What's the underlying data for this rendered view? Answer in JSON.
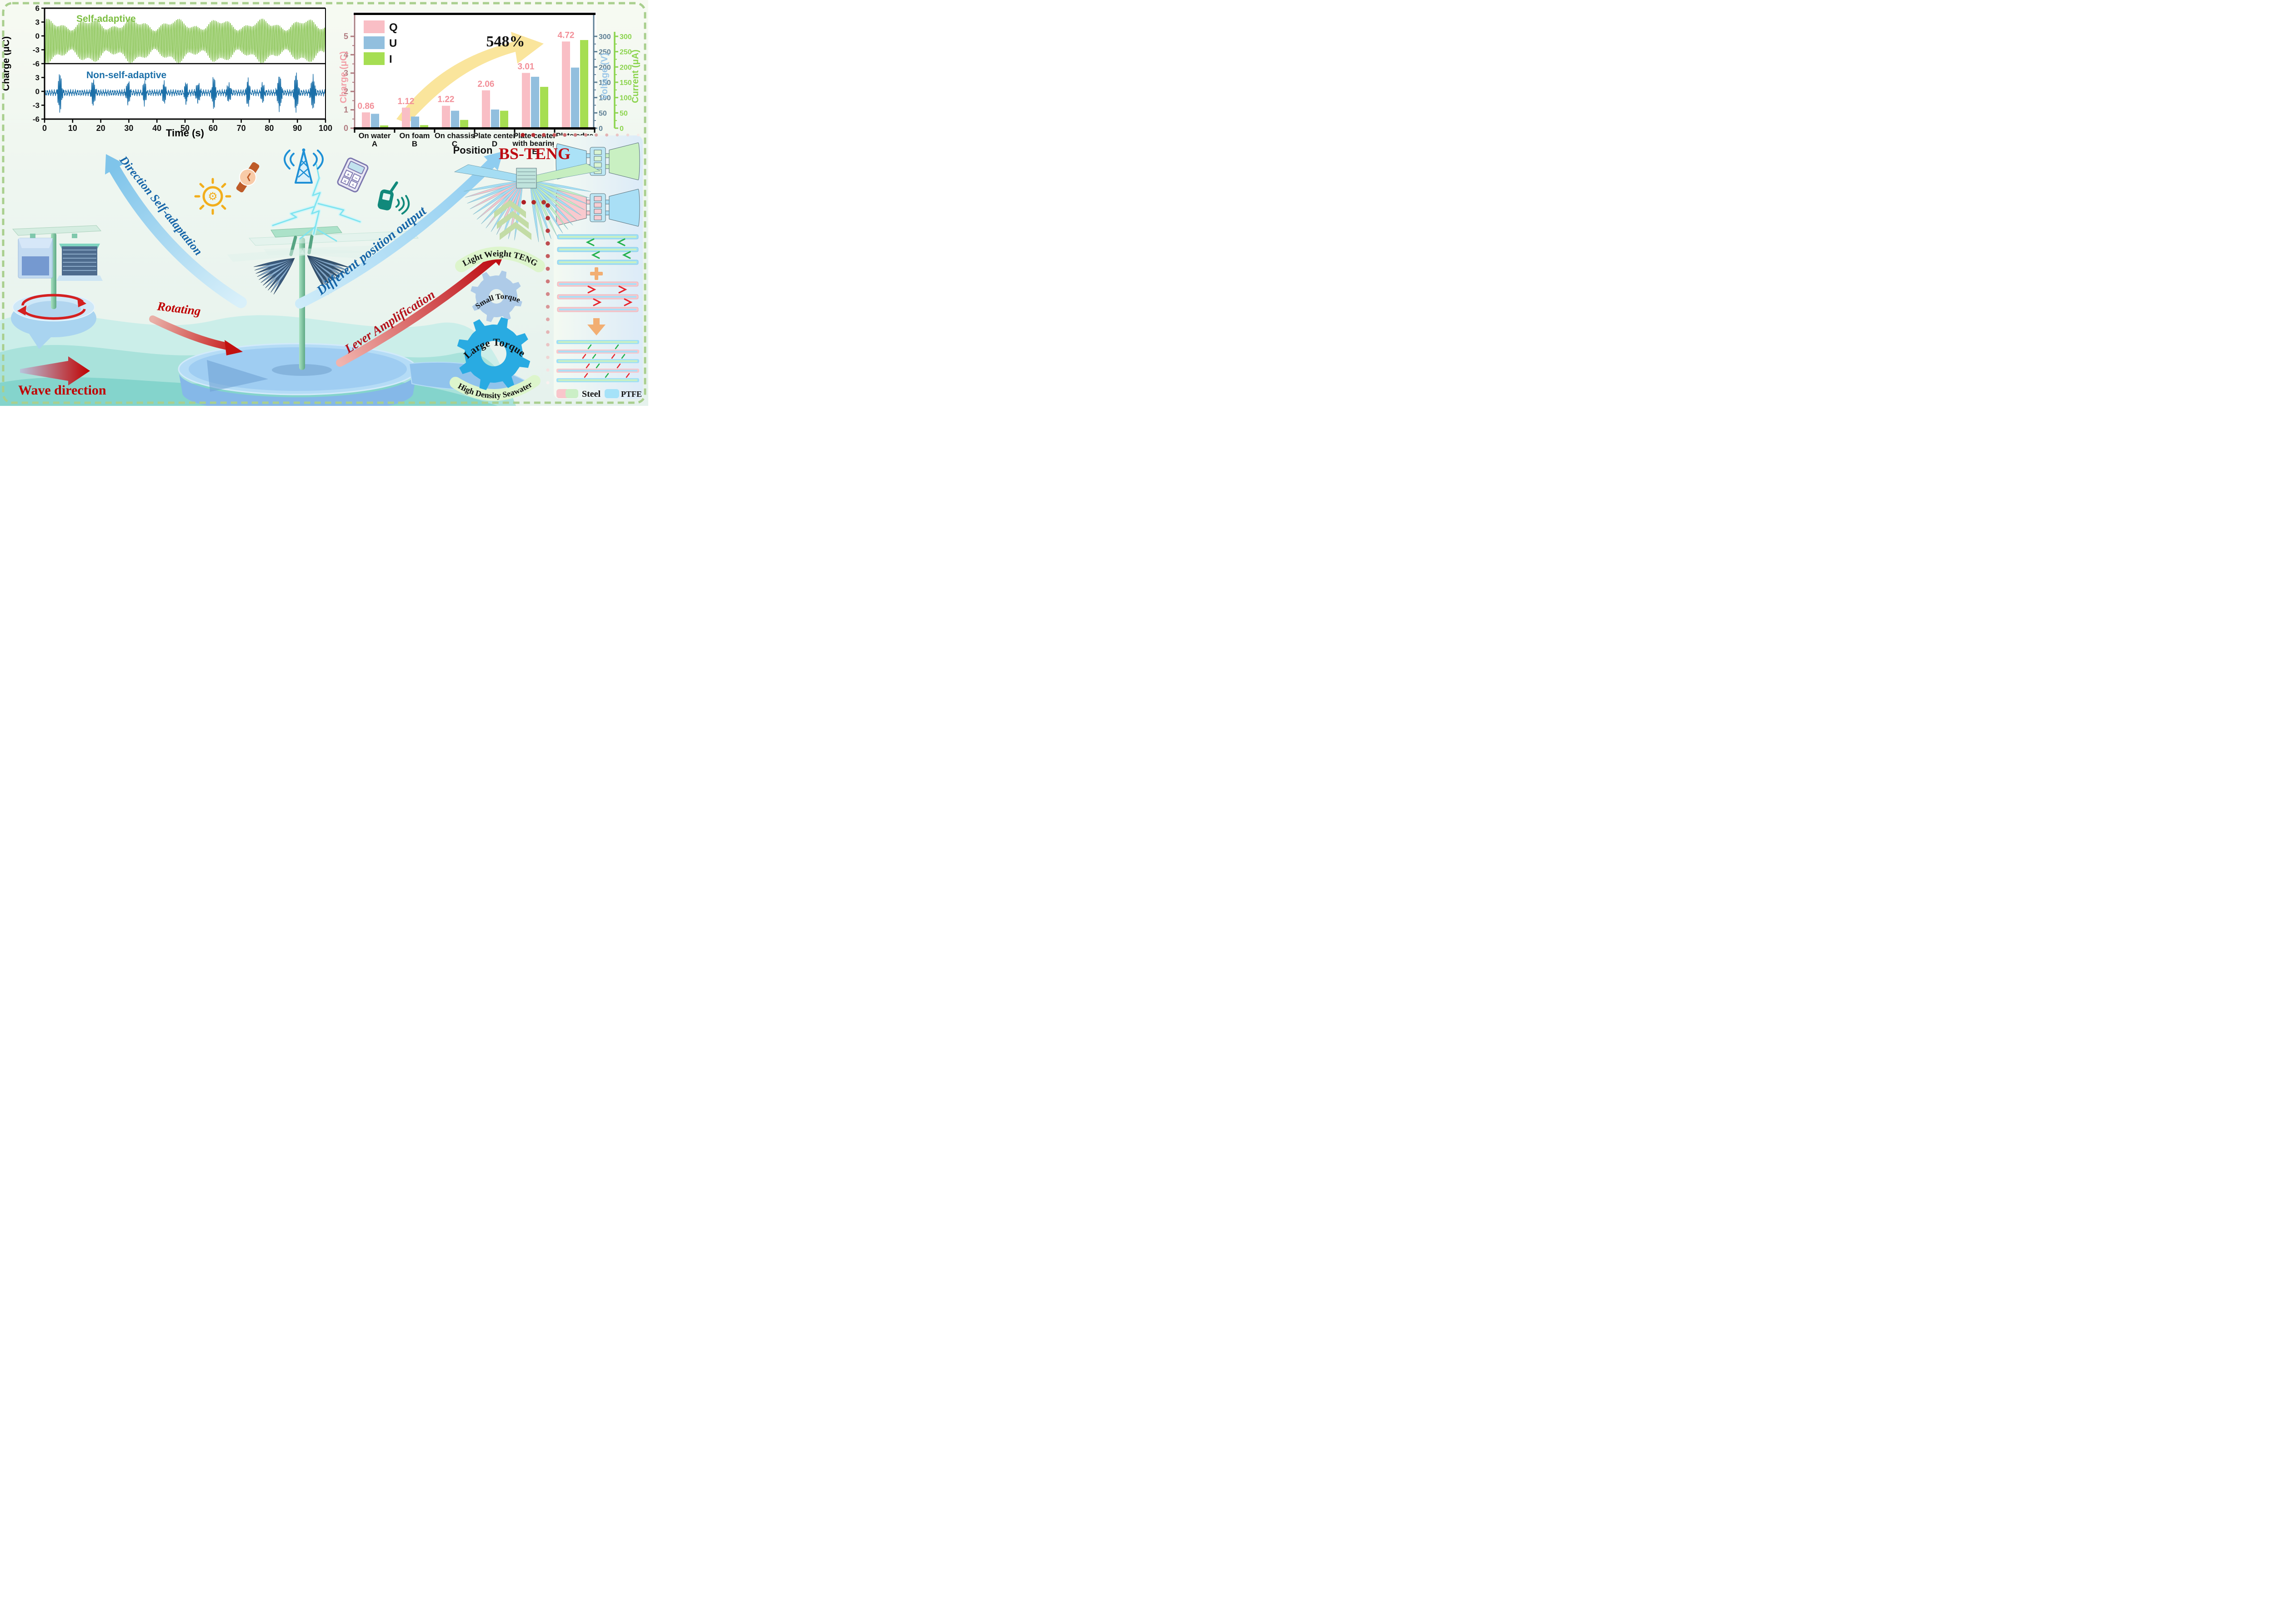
{
  "charge_time_chart": {
    "ylabel": "Charge (μC)",
    "xlabel": "Time (s)",
    "x_ticks": [
      0,
      10,
      20,
      30,
      40,
      50,
      60,
      70,
      80,
      90,
      100
    ],
    "y_ticks_top": [
      6,
      3,
      0,
      -3,
      -6
    ],
    "y_ticks_bottom": [
      3,
      0,
      -3,
      -6
    ],
    "series": [
      {
        "label": "Self-adaptive",
        "color": "#7cbe41"
      },
      {
        "label": "Non-self-adaptive",
        "color": "#1b6fa8"
      }
    ]
  },
  "position_chart": {
    "legend": [
      {
        "label": "Q",
        "color": "#f9bec5"
      },
      {
        "label": "U",
        "color": "#92bfde"
      },
      {
        "label": "I",
        "color": "#a6de52"
      }
    ],
    "annotation": "548%",
    "annotation_arrow_color": "#fae59c",
    "xlabel": "Position",
    "axis_left": {
      "label": "Charge (μC)",
      "label_color": "#f2a0a8",
      "tick_color": "#b07b80",
      "ticks": [
        0,
        1,
        2,
        3,
        4,
        5
      ]
    },
    "axis_voltage": {
      "label": "Voltage (V)",
      "label_color": "#9cc7e8",
      "tick_color": "#5e7f95",
      "ticks": [
        0,
        50,
        100,
        150,
        200,
        250,
        300
      ]
    },
    "axis_current": {
      "label": "Current (μA)",
      "label_color": "#8cd44e",
      "tick_color": "#8cd44e",
      "ticks": [
        0,
        50,
        100,
        150,
        200,
        250,
        300
      ]
    },
    "categories": [
      {
        "name": "On water",
        "letter": "A"
      },
      {
        "name": "On foam",
        "letter": "B"
      },
      {
        "name": "On chassis",
        "letter": "C"
      },
      {
        "name": "Plate center",
        "letter": "D"
      },
      {
        "name": "Plate center",
        "name2": "with bearing",
        "letter": "E"
      },
      {
        "name": "Plate edge",
        "name2": "with bearing",
        "letter": "F"
      }
    ],
    "q_values": [
      0.86,
      1.12,
      1.22,
      2.06,
      3.01,
      4.72
    ],
    "u_values": [
      47,
      38,
      57,
      61,
      168,
      198
    ],
    "i_values": [
      9,
      10,
      27,
      57,
      135,
      288
    ],
    "value_label_color": "#f28f98"
  },
  "chart_data": [
    {
      "type": "line",
      "title": "",
      "xlabel": "Time (s)",
      "ylabel": "Charge (μC)",
      "xlim": [
        0,
        100
      ],
      "ylim": [
        -6,
        6
      ],
      "grid": false,
      "series": [
        {
          "name": "Self-adaptive",
          "color": "#7cbe41",
          "description": "continuous ~1.8 Hz bipolar oscillation for the whole 0-100 s window",
          "peak_range_uC": [
            2.3,
            4.6
          ],
          "trough_range_uC": [
            -6.0,
            -4.3
          ]
        },
        {
          "name": "Non-self-adaptive",
          "color": "#1b6fa8",
          "description": "low ±0.8 μC baseline with intermittent bursts",
          "burst_peak_range_uC": [
            2.0,
            4.5
          ]
        }
      ]
    },
    {
      "type": "bar",
      "title": "",
      "xlabel": "Position",
      "categories": [
        "On water A",
        "On foam B",
        "On chassis C",
        "Plate center D",
        "Plate center with bearing E",
        "Plate edge with bearing F"
      ],
      "series": [
        {
          "name": "Q",
          "unit": "μC",
          "values": [
            0.86,
            1.12,
            1.22,
            2.06,
            3.01,
            4.72
          ]
        },
        {
          "name": "U",
          "unit": "V",
          "values": [
            47,
            38,
            57,
            61,
            168,
            198
          ]
        },
        {
          "name": "I",
          "unit": "μA",
          "values": [
            9,
            10,
            27,
            57,
            135,
            288
          ]
        }
      ],
      "annotation": "548%",
      "ylim_charge": [
        0,
        5.5
      ],
      "ylim_voltage": [
        0,
        330
      ],
      "ylim_current": [
        0,
        330
      ],
      "legend_position": "upper left",
      "grid": false
    }
  ],
  "waveform_synthesis": {
    "green_period_s": 0.55,
    "green_offset_uC": -0.65,
    "blue_bursts": [
      {
        "t": 5.5,
        "a": 4.3
      },
      {
        "t": 17.4,
        "a": 2.9
      },
      {
        "t": 29.7,
        "a": 2.6
      },
      {
        "t": 35.6,
        "a": 2.4
      },
      {
        "t": 42.5,
        "a": 2.3
      },
      {
        "t": 50.4,
        "a": 2.2
      },
      {
        "t": 54.6,
        "a": 2.4
      },
      {
        "t": 60.2,
        "a": 3.4
      },
      {
        "t": 65.6,
        "a": 2.2
      },
      {
        "t": 72.4,
        "a": 2.8
      },
      {
        "t": 77.7,
        "a": 2.1
      },
      {
        "t": 83.6,
        "a": 4.1
      },
      {
        "t": 89.6,
        "a": 4.4
      },
      {
        "t": 95.5,
        "a": 3.9
      }
    ]
  },
  "labels": {
    "direction": "Direction Self-adaptation",
    "rotating": "Rotating",
    "different": "Different position output",
    "lever": "Lever Amplification",
    "bsteng": "BS-TENG",
    "wave": "Wave direction"
  },
  "gears": {
    "top_banner": "Light Weight TENG",
    "small_gear": "Small Torque",
    "large_gear": "Large Torque",
    "bottom_banner": "High Density Seawater",
    "small_color": "#aecbe8",
    "large_color": "#29abe2",
    "banner_color": "#ddf5cc"
  },
  "materials_legend": [
    {
      "label": "Steel",
      "colors": [
        "#f9c6cb",
        "#cbefc6"
      ]
    },
    {
      "label": "PTFE",
      "colors": [
        "#a5e2f8"
      ]
    }
  ],
  "calculator_keys": [
    "+",
    "−",
    "×",
    "÷"
  ],
  "icons": [
    {
      "name": "light-bulb-gear-icon",
      "color": "#f2ae1c"
    },
    {
      "name": "watch-icon",
      "color": "#be5b28"
    },
    {
      "name": "radio-tower-icon",
      "color": "#1e90d6"
    },
    {
      "name": "calculator-icon",
      "color": "#7b76ae"
    },
    {
      "name": "walkie-talkie-icon",
      "color": "#11897b"
    }
  ],
  "decor": {
    "border_color": "#a9cf8e",
    "chevron_color": "#c3dca6",
    "dot_trails": [
      {
        "from": [
          1150,
          297
        ],
        "to": [
          1404,
          297
        ],
        "n": 12,
        "r1": 4.5,
        "r2": 3.0,
        "c1": "#ae1f24",
        "c2": "#f7e9e7"
      },
      {
        "from": [
          1205,
          452
        ],
        "to": [
          1205,
          842
        ],
        "n": 15,
        "r1": 5.0,
        "r2": 3.5,
        "c1": "#ae1f24",
        "c2": "#faf1ef"
      },
      {
        "from": [
          1152,
          445
        ],
        "to": [
          1196,
          445
        ],
        "n": 3,
        "r1": 5.0,
        "r2": 5.0,
        "c1": "#ae1f24",
        "c2": "#b5352f"
      }
    ]
  }
}
